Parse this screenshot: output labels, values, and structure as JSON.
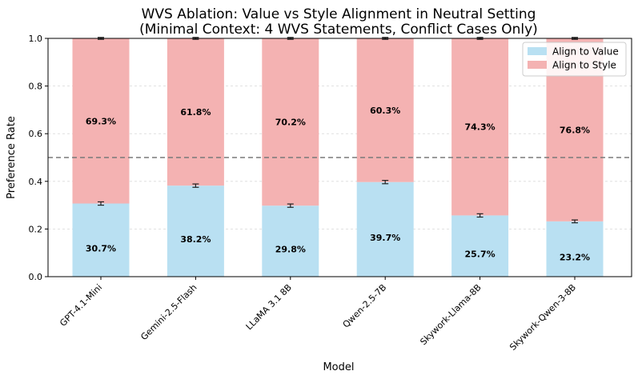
{
  "chart_data": {
    "type": "bar",
    "stacked": true,
    "title_line1": "WVS Ablation: Value vs Style Alignment in Neutral Setting",
    "title_line2": "(Minimal Context: 4 WVS Statements, Conflict Cases Only)",
    "xlabel": "Model",
    "ylabel": "Preference Rate",
    "ylim": [
      0,
      1
    ],
    "yticks": [
      "0.0",
      "0.2",
      "0.4",
      "0.6",
      "0.8",
      "1.0"
    ],
    "reference_line": 0.5,
    "categories": [
      "GPT-4.1-Mini",
      "Gemini-2.5-Flash",
      "LLaMA 3.1 8B",
      "Qwen-2.5-7B",
      "Skywork-Llama-8B",
      "Skywork-Qwen-3-8B"
    ],
    "series": [
      {
        "name": "Align to Value",
        "color": "#b9e0f2",
        "values": [
          0.307,
          0.382,
          0.298,
          0.397,
          0.257,
          0.232
        ],
        "labels": [
          "30.7%",
          "38.2%",
          "29.8%",
          "39.7%",
          "25.7%",
          "23.2%"
        ],
        "errors": [
          0.007,
          0.007,
          0.007,
          0.007,
          0.007,
          0.006
        ]
      },
      {
        "name": "Align to Style",
        "color": "#f4b2b2",
        "values": [
          0.693,
          0.618,
          0.702,
          0.603,
          0.743,
          0.768
        ],
        "labels": [
          "69.3%",
          "61.8%",
          "70.2%",
          "60.3%",
          "74.3%",
          "76.8%"
        ],
        "errors": [
          0.004,
          0.004,
          0.004,
          0.004,
          0.004,
          0.004
        ]
      }
    ],
    "legend_position": "top-right",
    "grid": true
  }
}
